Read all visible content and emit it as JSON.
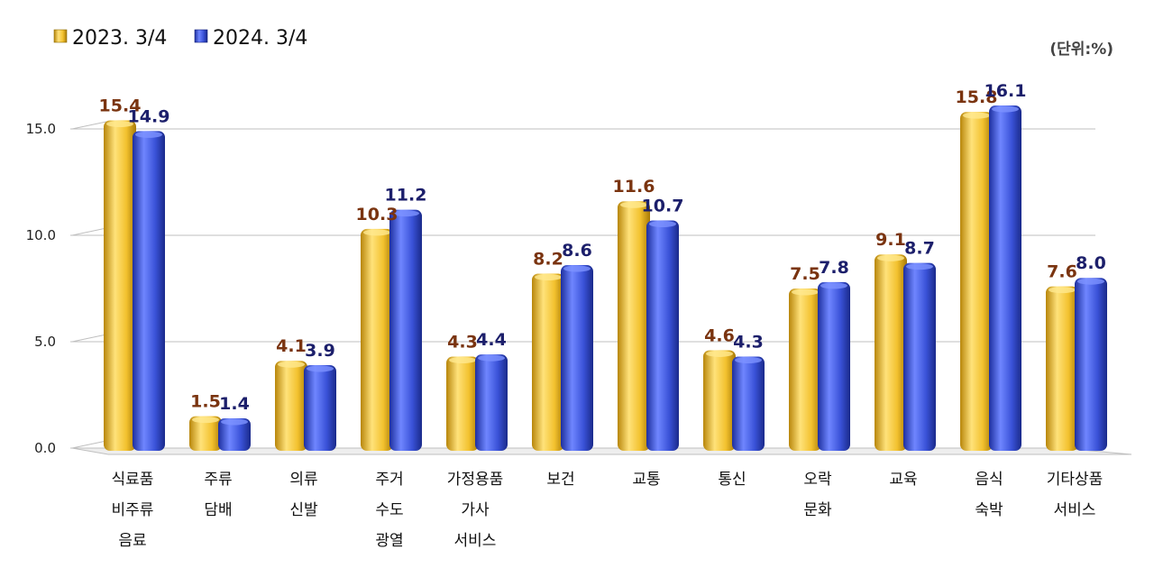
{
  "chart_data": {
    "type": "bar",
    "unit_label": "(단위:%)",
    "ylim": [
      0,
      15.0
    ],
    "y_ticks": [
      "0.0",
      "5.0",
      "10.0",
      "15.0"
    ],
    "y_tick_values": [
      0,
      5,
      10,
      15
    ],
    "grid": true,
    "legend_placement": "top-left",
    "categories": [
      [
        "식료품",
        "비주류",
        "음료"
      ],
      [
        "주류",
        "담배"
      ],
      [
        "의류",
        "신발"
      ],
      [
        "주거",
        "수도",
        "광열"
      ],
      [
        "가정용품",
        "가사",
        "서비스"
      ],
      [
        "보건"
      ],
      [
        "교통"
      ],
      [
        "통신"
      ],
      [
        "오락",
        "문화"
      ],
      [
        "교육"
      ],
      [
        "음식",
        "숙박"
      ],
      [
        "기타상품",
        "서비스"
      ]
    ],
    "series": [
      {
        "name": "2023. 3/4",
        "color": "#f2c12e",
        "values": [
          15.4,
          1.5,
          4.1,
          10.3,
          4.3,
          8.2,
          11.6,
          4.6,
          7.5,
          9.1,
          15.8,
          7.6
        ],
        "labels": [
          "15.4",
          "1.5",
          "4.1",
          "10.3",
          "4.3",
          "8.2",
          "11.6",
          "4.6",
          "7.5",
          "9.1",
          "15.8",
          "7.6"
        ]
      },
      {
        "name": "2024. 3/4",
        "color": "#3a52d8",
        "values": [
          14.9,
          1.4,
          3.9,
          11.2,
          4.4,
          8.6,
          10.7,
          4.3,
          7.8,
          8.7,
          16.1,
          8.0
        ],
        "labels": [
          "14.9",
          "1.4",
          "3.9",
          "11.2",
          "4.4",
          "8.6",
          "10.7",
          "4.3",
          "7.8",
          "8.7",
          "16.1",
          "8.0"
        ]
      }
    ]
  }
}
